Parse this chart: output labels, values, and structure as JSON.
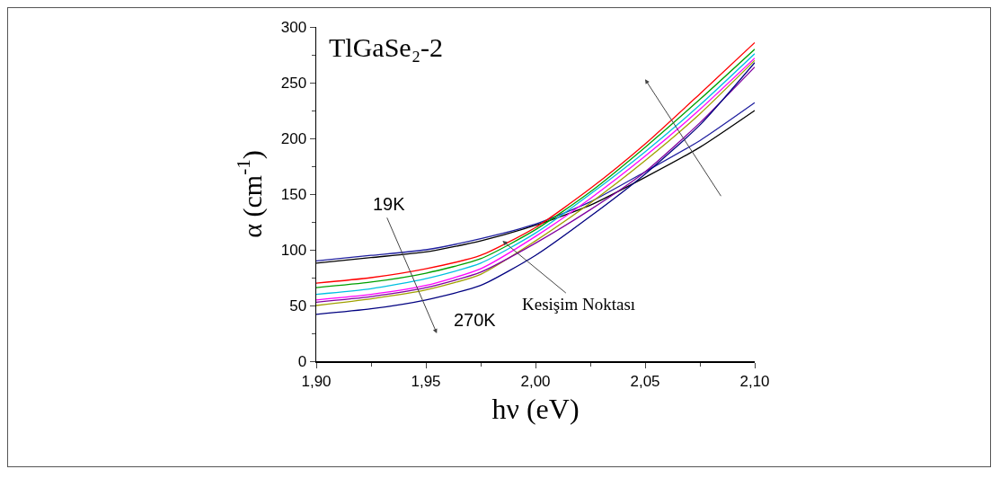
{
  "chart_data": {
    "type": "line",
    "title": "TlGaSe₂-2",
    "xlabel": "hν (eV)",
    "ylabel": "α (cm$^{-1}$)",
    "x": [
      1.9,
      1.925,
      1.95,
      1.975,
      2.0,
      2.025,
      2.05,
      2.075,
      2.1
    ],
    "series": [
      {
        "color": "#000000",
        "values": [
          88,
          93,
          98,
          108,
          122,
          140,
          165,
          192,
          225
        ]
      },
      {
        "color": "#1f1f9f",
        "values": [
          90,
          95,
          100,
          110,
          123,
          143,
          170,
          198,
          232
        ]
      },
      {
        "color": "#ff0000",
        "values": [
          70,
          75,
          83,
          95,
          120,
          155,
          195,
          240,
          286
        ]
      },
      {
        "color": "#00a000",
        "values": [
          66,
          71,
          79,
          92,
          118,
          152,
          192,
          235,
          280
        ]
      },
      {
        "color": "#00c0e0",
        "values": [
          60,
          65,
          74,
          88,
          115,
          150,
          188,
          230,
          276
        ]
      },
      {
        "color": "#ff00ff",
        "values": [
          55,
          60,
          68,
          83,
          112,
          146,
          184,
          226,
          272
        ]
      },
      {
        "color": "#a0a000",
        "values": [
          50,
          56,
          64,
          78,
          108,
          142,
          180,
          222,
          270
        ]
      },
      {
        "color": "#8000a0",
        "values": [
          53,
          58,
          66,
          80,
          106,
          136,
          170,
          214,
          264
        ]
      },
      {
        "color": "#000080",
        "values": [
          42,
          47,
          55,
          68,
          95,
          130,
          168,
          212,
          268
        ]
      }
    ],
    "xlim": [
      1.9,
      2.1
    ],
    "xticks": [
      {
        "value": 1.9,
        "label": "1,90"
      },
      {
        "value": 1.95,
        "label": "1,95"
      },
      {
        "value": 2.0,
        "label": "2,00"
      },
      {
        "value": 2.05,
        "label": "2,05"
      },
      {
        "value": 2.1,
        "label": "2,10"
      }
    ],
    "ylim": [
      0,
      300
    ],
    "yticks": [
      0,
      50,
      100,
      150,
      200,
      250,
      300
    ],
    "grid": false,
    "marker": "none",
    "line_style": "solid",
    "annotations": [
      "19K",
      "270K",
      {
        "text": "Kesişim Noktası",
        "x": 1.985,
        "y": 108
      }
    ]
  }
}
